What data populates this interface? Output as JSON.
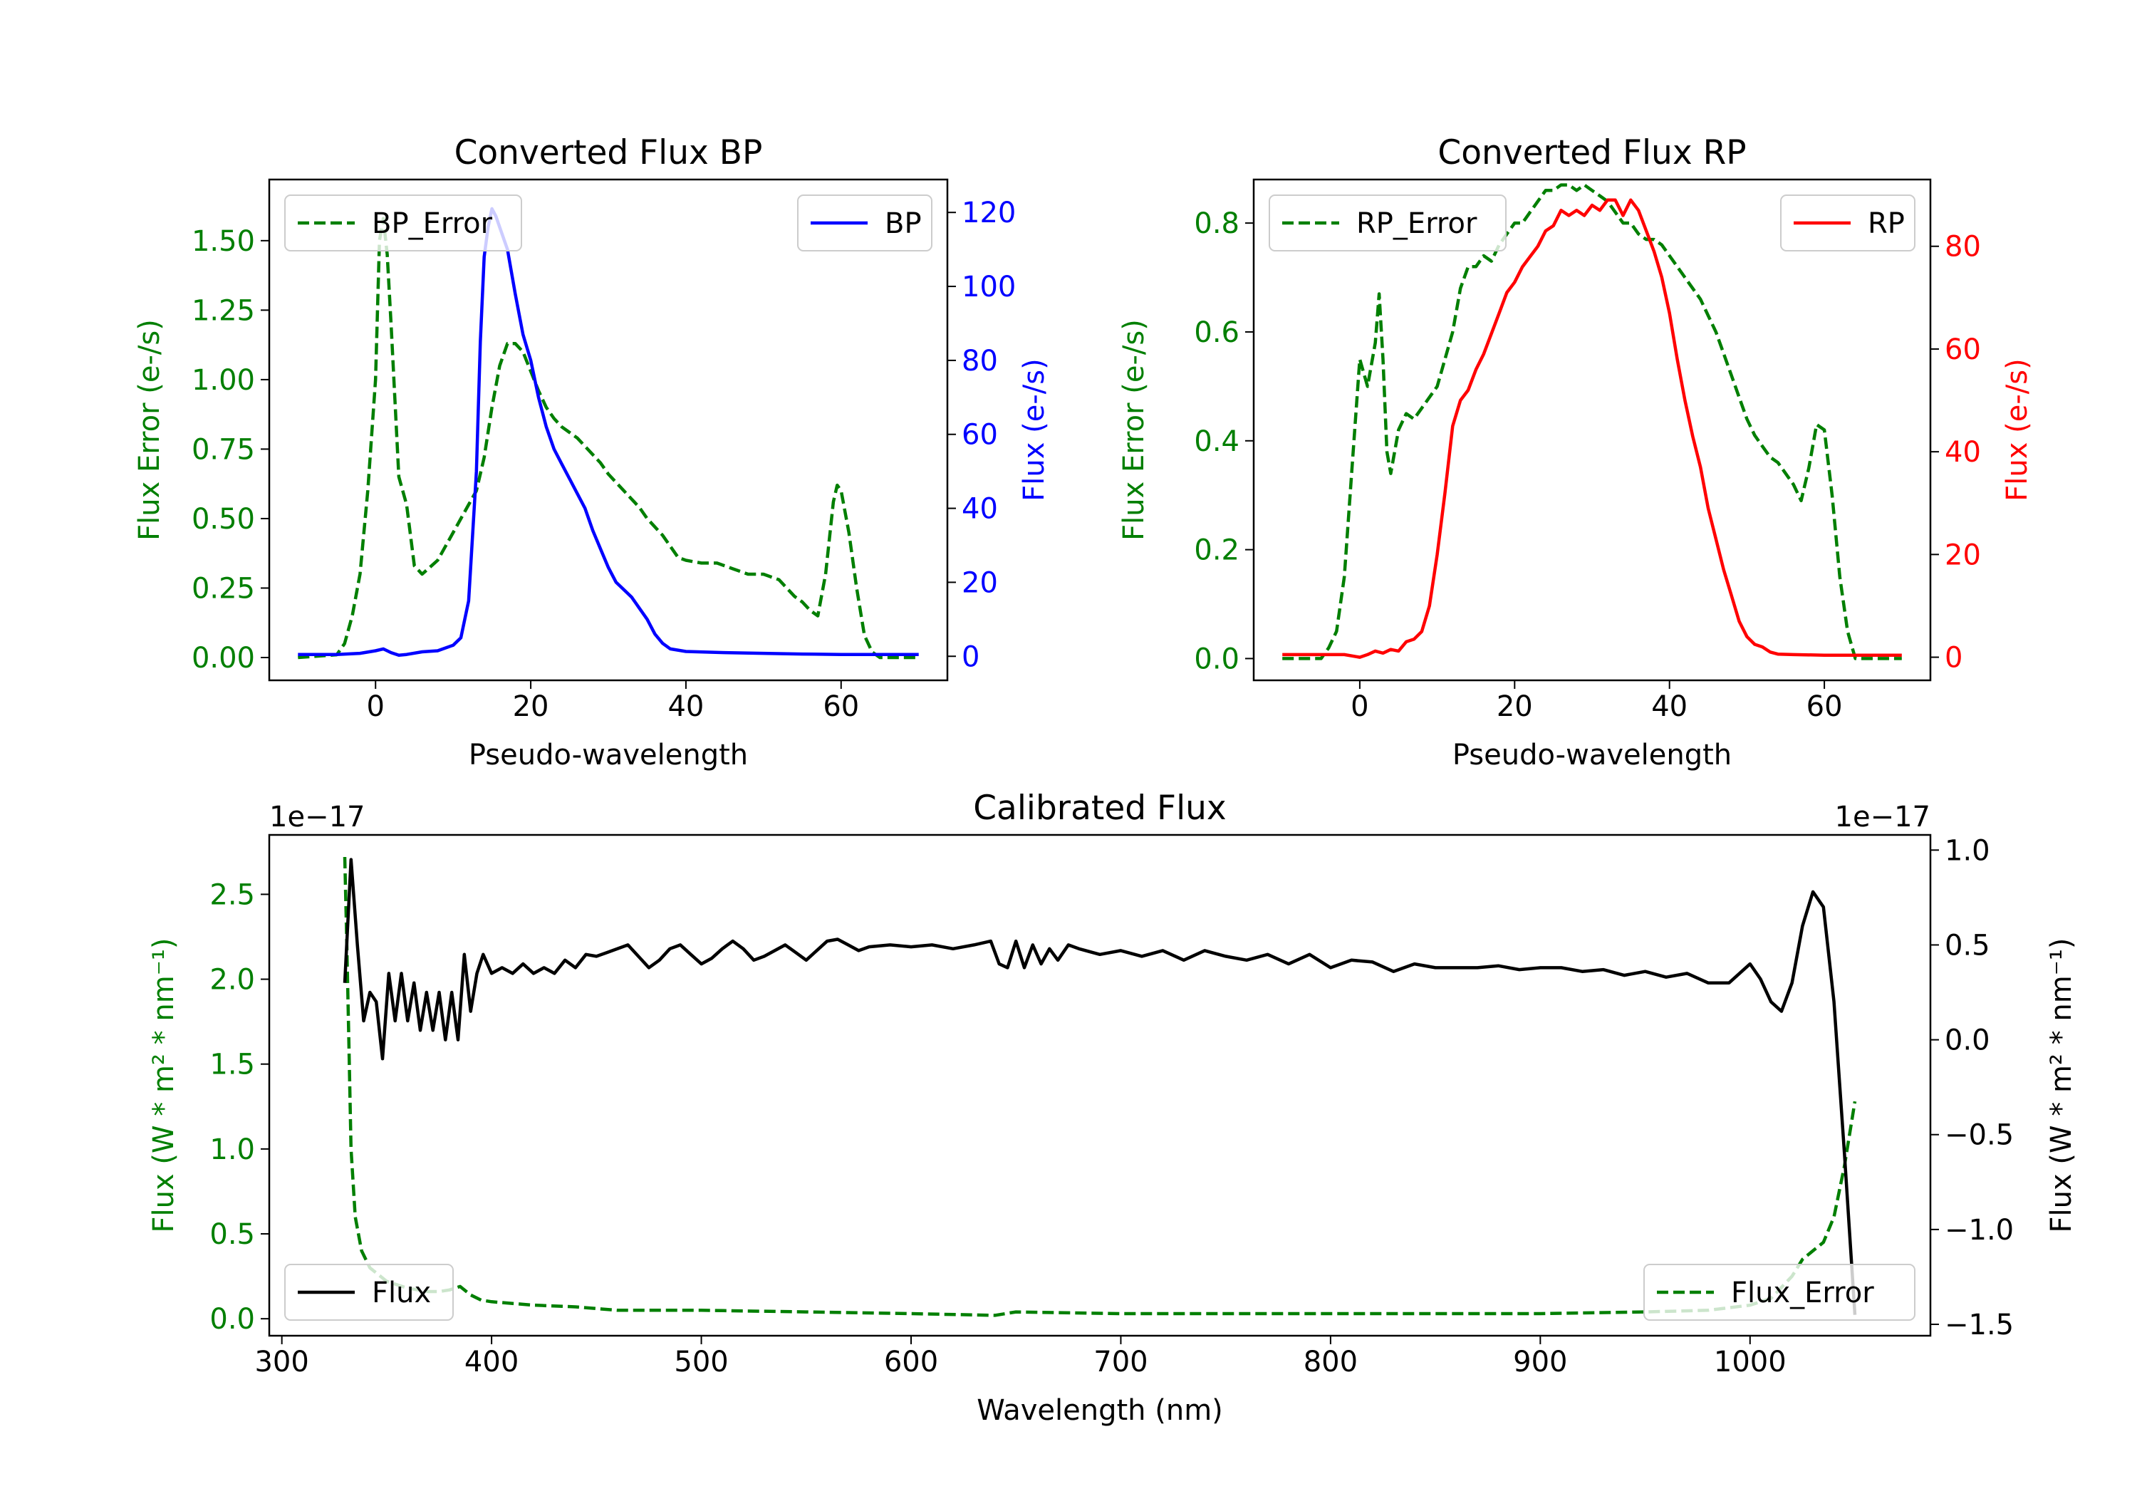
{
  "colors": {
    "bp": "#0000ff",
    "rp": "#ff0000",
    "error": "#007f00",
    "flux": "#000000",
    "axis": "#000000"
  },
  "chart_data": [
    {
      "id": "bp",
      "type": "line",
      "title": "Converted Flux BP",
      "xlabel": "Pseudo-wavelength",
      "ylabel_left": "Flux Error (e-/s)",
      "ylabel_right": "Flux (e-/s)",
      "xlim": [
        -13.7,
        73.7
      ],
      "ylim_left": [
        -0.082,
        1.72
      ],
      "ylim_right": [
        -6.5,
        128.9
      ],
      "xticks": [
        0,
        20,
        40,
        60
      ],
      "yticks_left": [
        "0.00",
        "0.25",
        "0.50",
        "0.75",
        "1.00",
        "1.25",
        "1.50"
      ],
      "yticks_right": [
        0,
        20,
        40,
        60,
        80,
        100,
        120
      ],
      "series": [
        {
          "name": "BP_Error",
          "axis": "left",
          "style": "dashed",
          "color": "error",
          "x": [
            -10,
            -5,
            -4,
            -3,
            -2,
            -1,
            0,
            0.5,
            1,
            1.5,
            2,
            3,
            4,
            5,
            6,
            8,
            10,
            12,
            13,
            14,
            15,
            16,
            17,
            18,
            19,
            20,
            21,
            22,
            23,
            24,
            25,
            26,
            27,
            28,
            29,
            30,
            31,
            32,
            33,
            34,
            35,
            36,
            37,
            38,
            39,
            40,
            42,
            44,
            46,
            48,
            50,
            52,
            54,
            55,
            56,
            57,
            58,
            59,
            59.5,
            60,
            61,
            62,
            63,
            64,
            65,
            70
          ],
          "y": [
            0.0,
            0.01,
            0.05,
            0.15,
            0.3,
            0.6,
            1.0,
            1.5,
            1.58,
            1.45,
            1.2,
            0.65,
            0.55,
            0.33,
            0.3,
            0.35,
            0.45,
            0.55,
            0.6,
            0.72,
            0.9,
            1.05,
            1.13,
            1.13,
            1.1,
            1.03,
            0.96,
            0.9,
            0.86,
            0.83,
            0.81,
            0.79,
            0.76,
            0.73,
            0.7,
            0.66,
            0.63,
            0.6,
            0.57,
            0.54,
            0.5,
            0.47,
            0.44,
            0.4,
            0.36,
            0.35,
            0.34,
            0.34,
            0.32,
            0.3,
            0.3,
            0.28,
            0.22,
            0.2,
            0.17,
            0.15,
            0.3,
            0.56,
            0.62,
            0.6,
            0.45,
            0.25,
            0.08,
            0.02,
            0.0,
            0.0
          ]
        },
        {
          "name": "BP",
          "axis": "right",
          "style": "solid",
          "color": "bp",
          "x": [
            -10,
            -5,
            -2,
            0,
            1,
            2,
            3,
            4,
            6,
            8,
            10,
            11,
            12,
            13,
            13.5,
            14,
            14.5,
            15,
            15.5,
            16,
            17,
            18,
            19,
            20,
            21,
            22,
            23,
            24,
            25,
            26,
            27,
            28,
            29,
            30,
            31,
            32,
            33,
            34,
            35,
            36,
            37,
            38,
            40,
            45,
            50,
            55,
            60,
            65,
            70
          ],
          "y": [
            0.5,
            0.5,
            0.8,
            1.5,
            2.0,
            1.0,
            0.3,
            0.5,
            1.2,
            1.5,
            3,
            5,
            15,
            50,
            85,
            108,
            116,
            121,
            119,
            116,
            110,
            98,
            87,
            80,
            70,
            62,
            56,
            52,
            48,
            44,
            40,
            34,
            29,
            24,
            20,
            18,
            16,
            13,
            10,
            6,
            3.5,
            2,
            1.3,
            1.0,
            0.8,
            0.6,
            0.5,
            0.5,
            0.5
          ]
        }
      ],
      "legend_left": "BP_Error",
      "legend_right": "BP"
    },
    {
      "id": "rp",
      "type": "line",
      "title": "Converted Flux RP",
      "xlabel": "Pseudo-wavelength",
      "ylabel_left": "Flux Error (e-/s)",
      "ylabel_right": "Flux (e-/s)",
      "xlim": [
        -13.7,
        73.7
      ],
      "ylim_left": [
        -0.04,
        0.88
      ],
      "ylim_right": [
        -4.5,
        93
      ],
      "xticks": [
        0,
        20,
        40,
        60
      ],
      "yticks_left": [
        "0.0",
        "0.2",
        "0.4",
        "0.6",
        "0.8"
      ],
      "yticks_right": [
        0,
        20,
        40,
        60,
        80
      ],
      "series": [
        {
          "name": "RP_Error",
          "axis": "left",
          "style": "dashed",
          "color": "error",
          "x": [
            -10,
            -5,
            -4,
            -3,
            -2,
            -1,
            0,
            1,
            2,
            2.5,
            3,
            3.5,
            4,
            5,
            6,
            7,
            8,
            10,
            11,
            12,
            13,
            14,
            15,
            16,
            17,
            18,
            19,
            20,
            21,
            22,
            23,
            24,
            25,
            26,
            27,
            28,
            29,
            30,
            31,
            32,
            33,
            34,
            35,
            36,
            37,
            38,
            39,
            40,
            41,
            42,
            43,
            44,
            45,
            46,
            47,
            48,
            49,
            50,
            51,
            52,
            53,
            54,
            55,
            56,
            57,
            58,
            59,
            60,
            61,
            62,
            63,
            64,
            65,
            70
          ],
          "y": [
            0.0,
            0.0,
            0.02,
            0.05,
            0.15,
            0.35,
            0.55,
            0.5,
            0.58,
            0.67,
            0.55,
            0.38,
            0.34,
            0.42,
            0.45,
            0.44,
            0.46,
            0.5,
            0.55,
            0.6,
            0.68,
            0.72,
            0.72,
            0.74,
            0.73,
            0.76,
            0.78,
            0.8,
            0.8,
            0.82,
            0.84,
            0.86,
            0.86,
            0.87,
            0.87,
            0.86,
            0.87,
            0.86,
            0.85,
            0.84,
            0.82,
            0.8,
            0.8,
            0.78,
            0.77,
            0.77,
            0.76,
            0.74,
            0.72,
            0.7,
            0.68,
            0.66,
            0.63,
            0.6,
            0.56,
            0.52,
            0.48,
            0.44,
            0.41,
            0.39,
            0.37,
            0.36,
            0.34,
            0.32,
            0.29,
            0.35,
            0.43,
            0.42,
            0.3,
            0.15,
            0.05,
            0.0,
            0.0,
            0.0
          ]
        },
        {
          "name": "RP",
          "axis": "right",
          "style": "solid",
          "color": "rp",
          "x": [
            -10,
            -5,
            -2,
            0,
            1,
            2,
            3,
            4,
            5,
            6,
            7,
            8,
            9,
            10,
            11,
            12,
            13,
            14,
            15,
            16,
            17,
            18,
            19,
            20,
            21,
            22,
            23,
            24,
            25,
            26,
            27,
            28,
            29,
            30,
            31,
            32,
            33,
            34,
            35,
            36,
            37,
            38,
            39,
            40,
            41,
            42,
            43,
            44,
            45,
            46,
            47,
            48,
            49,
            50,
            51,
            52,
            53,
            54,
            56,
            60,
            65,
            70
          ],
          "y": [
            0.5,
            0.5,
            0.5,
            0.0,
            0.5,
            1.2,
            0.8,
            1.5,
            1.2,
            3,
            3.5,
            5,
            10,
            20,
            32,
            45,
            50,
            52,
            56,
            59,
            63,
            67,
            71,
            73,
            76,
            78,
            80,
            83,
            84,
            87,
            86,
            87,
            86,
            88,
            87,
            89,
            89,
            86,
            89,
            87,
            83,
            79,
            74,
            67,
            58,
            50,
            43,
            37,
            29,
            23,
            17,
            12,
            7,
            4,
            2.5,
            2,
            1.0,
            0.6,
            0.5,
            0.4,
            0.4,
            0.4
          ]
        }
      ],
      "legend_left": "RP_Error",
      "legend_right": "RP"
    },
    {
      "id": "cal",
      "type": "line",
      "title": "Calibrated Flux",
      "xlabel": "Wavelength (nm)",
      "ylabel_left": "Flux (W * m² * nm⁻¹)",
      "ylabel_right": "Flux (W * m² * nm⁻¹)",
      "offset_left": "1e−17",
      "offset_right": "1e−17",
      "xlim": [
        294,
        1086
      ],
      "ylim_left": [
        -0.1,
        2.85
      ],
      "ylim_right": [
        -1.56,
        1.08
      ],
      "xticks": [
        300,
        400,
        500,
        600,
        700,
        800,
        900,
        1000
      ],
      "yticks_left": [
        "0.0",
        "0.5",
        "1.0",
        "1.5",
        "2.0",
        "2.5"
      ],
      "yticks_right": [
        {
          "v": 1.0,
          "label": "1.0"
        },
        {
          "v": 0.5,
          "label": "0.5"
        },
        {
          "v": 0.0,
          "label": "0.0"
        },
        {
          "v": -0.5,
          "label": "−0.5"
        },
        {
          "v": -1.0,
          "label": "−1.0"
        },
        {
          "v": -1.5,
          "label": "−1.5"
        }
      ],
      "series": [
        {
          "name": "Flux_Error",
          "axis": "left",
          "style": "dashed",
          "color": "error",
          "x": [
            330,
            331,
            332,
            333,
            335,
            338,
            342,
            346,
            350,
            355,
            360,
            365,
            370,
            375,
            380,
            385,
            390,
            395,
            400,
            420,
            440,
            460,
            500,
            550,
            600,
            640,
            650,
            700,
            800,
            900,
            950,
            980,
            1000,
            1010,
            1020,
            1025,
            1030,
            1035,
            1040,
            1045,
            1050
          ],
          "y": [
            2.72,
            2.2,
            1.6,
            1.0,
            0.6,
            0.4,
            0.3,
            0.26,
            0.22,
            0.2,
            0.18,
            0.17,
            0.16,
            0.16,
            0.17,
            0.19,
            0.14,
            0.11,
            0.1,
            0.08,
            0.07,
            0.05,
            0.05,
            0.04,
            0.03,
            0.02,
            0.04,
            0.03,
            0.03,
            0.03,
            0.04,
            0.05,
            0.08,
            0.12,
            0.25,
            0.35,
            0.4,
            0.45,
            0.6,
            0.9,
            1.28
          ]
        },
        {
          "name": "Flux",
          "axis": "right",
          "style": "solid",
          "color": "flux",
          "x": [
            330,
            333,
            336,
            339,
            342,
            345,
            348,
            351,
            354,
            357,
            360,
            363,
            366,
            369,
            372,
            375,
            378,
            381,
            384,
            387,
            390,
            393,
            396,
            400,
            405,
            410,
            415,
            420,
            425,
            430,
            435,
            440,
            445,
            450,
            455,
            460,
            465,
            470,
            475,
            480,
            485,
            490,
            495,
            500,
            505,
            510,
            515,
            520,
            525,
            530,
            535,
            540,
            545,
            550,
            555,
            560,
            565,
            570,
            575,
            580,
            590,
            600,
            610,
            620,
            630,
            638,
            642,
            646,
            650,
            654,
            658,
            662,
            666,
            670,
            675,
            680,
            690,
            700,
            710,
            720,
            730,
            740,
            750,
            760,
            770,
            780,
            790,
            800,
            810,
            820,
            830,
            840,
            850,
            860,
            870,
            880,
            890,
            900,
            910,
            920,
            930,
            940,
            950,
            960,
            970,
            980,
            990,
            1000,
            1005,
            1010,
            1015,
            1020,
            1025,
            1030,
            1035,
            1040,
            1045,
            1050
          ],
          "y": [
            0.3,
            0.95,
            0.5,
            0.1,
            0.25,
            0.2,
            -0.1,
            0.35,
            0.1,
            0.35,
            0.1,
            0.3,
            0.05,
            0.25,
            0.05,
            0.25,
            0.0,
            0.25,
            0.0,
            0.45,
            0.15,
            0.35,
            0.45,
            0.35,
            0.38,
            0.35,
            0.4,
            0.35,
            0.38,
            0.35,
            0.42,
            0.38,
            0.45,
            0.44,
            0.46,
            0.48,
            0.5,
            0.44,
            0.38,
            0.42,
            0.48,
            0.5,
            0.45,
            0.4,
            0.43,
            0.48,
            0.52,
            0.48,
            0.42,
            0.44,
            0.47,
            0.5,
            0.46,
            0.42,
            0.47,
            0.52,
            0.53,
            0.5,
            0.47,
            0.49,
            0.5,
            0.49,
            0.5,
            0.48,
            0.5,
            0.52,
            0.4,
            0.38,
            0.52,
            0.38,
            0.5,
            0.4,
            0.48,
            0.42,
            0.5,
            0.48,
            0.45,
            0.47,
            0.44,
            0.47,
            0.42,
            0.47,
            0.44,
            0.42,
            0.45,
            0.4,
            0.45,
            0.38,
            0.42,
            0.41,
            0.36,
            0.4,
            0.38,
            0.38,
            0.38,
            0.39,
            0.37,
            0.38,
            0.38,
            0.36,
            0.37,
            0.34,
            0.36,
            0.33,
            0.35,
            0.3,
            0.3,
            0.4,
            0.32,
            0.2,
            0.15,
            0.3,
            0.6,
            0.78,
            0.7,
            0.2,
            -0.6,
            -1.45
          ]
        }
      ],
      "legend_left": "Flux",
      "legend_right": "Flux_Error"
    }
  ]
}
